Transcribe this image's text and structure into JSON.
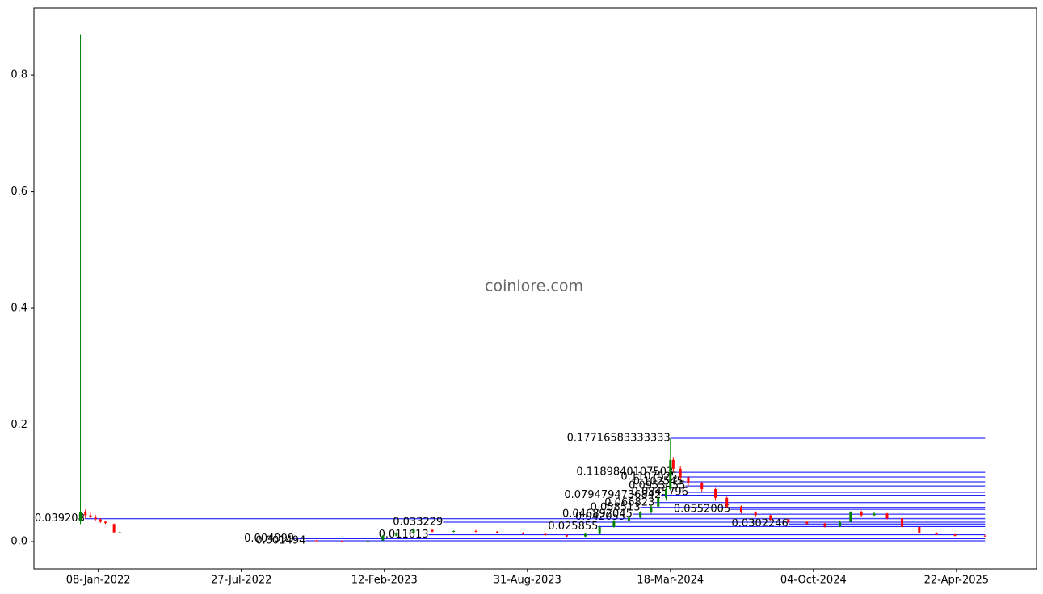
{
  "chart_data": {
    "type": "candlestick",
    "watermark": "coinlore.com",
    "x": [
      "2021-12-14",
      "2021-12-21",
      "2021-12-28",
      "2022-01-04",
      "2022-01-11",
      "2022-01-18",
      "2022-01-30",
      "2022-02-07",
      "2022-11-09",
      "2022-12-15",
      "2023-01-20",
      "2023-02-10",
      "2023-03-01",
      "2023-03-25",
      "2023-04-20",
      "2023-05-20",
      "2023-06-20",
      "2023-07-20",
      "2023-08-25",
      "2023-09-25",
      "2023-10-25",
      "2023-11-20",
      "2023-12-10",
      "2023-12-30",
      "2024-01-20",
      "2024-02-05",
      "2024-02-20",
      "2024-03-01",
      "2024-03-12",
      "2024-03-18",
      "2024-03-22",
      "2024-04-01",
      "2024-04-12",
      "2024-05-01",
      "2024-05-20",
      "2024-06-05",
      "2024-06-25",
      "2024-07-15",
      "2024-08-05",
      "2024-08-30",
      "2024-09-25",
      "2024-10-20",
      "2024-11-10",
      "2024-11-25",
      "2024-12-10",
      "2024-12-28",
      "2025-01-15",
      "2025-02-05",
      "2025-03-01",
      "2025-03-25",
      "2025-04-20",
      "2025-06-01"
    ],
    "open": [
      0.035,
      0.05,
      0.045,
      0.042,
      0.038,
      0.034,
      0.03,
      0.016,
      0.002,
      0.0015,
      0.0012,
      0.002,
      0.01,
      0.015,
      0.02,
      0.017,
      0.018,
      0.017,
      0.015,
      0.013,
      0.011,
      0.009,
      0.013,
      0.025,
      0.035,
      0.041,
      0.05,
      0.06,
      0.075,
      0.09,
      0.14,
      0.125,
      0.11,
      0.1,
      0.09,
      0.075,
      0.06,
      0.05,
      0.045,
      0.038,
      0.034,
      0.031,
      0.026,
      0.034,
      0.05,
      0.045,
      0.048,
      0.04,
      0.025,
      0.015,
      0.012,
      0.01
    ],
    "high": [
      0.87,
      0.055,
      0.05,
      0.046,
      0.04,
      0.036,
      0.031,
      0.017,
      0.003,
      0.002,
      0.002,
      0.011,
      0.016,
      0.023,
      0.021,
      0.019,
      0.02,
      0.018,
      0.016,
      0.014,
      0.012,
      0.014,
      0.027,
      0.037,
      0.043,
      0.052,
      0.062,
      0.077,
      0.093,
      0.17716583333333,
      0.145,
      0.13,
      0.112,
      0.102,
      0.092,
      0.077,
      0.062,
      0.052,
      0.046,
      0.04,
      0.035,
      0.032,
      0.036,
      0.052,
      0.053,
      0.05,
      0.049,
      0.041,
      0.026,
      0.016,
      0.013,
      0.011
    ],
    "low": [
      0.03,
      0.04,
      0.04,
      0.035,
      0.032,
      0.03,
      0.015,
      0.015,
      0.001,
      0.001,
      0.001,
      0.002,
      0.009,
      0.014,
      0.016,
      0.016,
      0.016,
      0.014,
      0.012,
      0.01,
      0.008,
      0.008,
      0.012,
      0.024,
      0.033,
      0.04,
      0.048,
      0.058,
      0.07,
      0.088,
      0.12,
      0.105,
      0.095,
      0.085,
      0.07,
      0.058,
      0.048,
      0.042,
      0.036,
      0.032,
      0.029,
      0.024,
      0.025,
      0.033,
      0.043,
      0.044,
      0.038,
      0.023,
      0.014,
      0.011,
      0.009,
      0.009
    ],
    "close": [
      0.05,
      0.045,
      0.042,
      0.038,
      0.034,
      0.032,
      0.016,
      0.016,
      0.0015,
      0.0012,
      0.0015,
      0.01,
      0.015,
      0.02,
      0.017,
      0.018,
      0.017,
      0.015,
      0.013,
      0.011,
      0.009,
      0.013,
      0.025,
      0.035,
      0.041,
      0.05,
      0.06,
      0.075,
      0.09,
      0.14,
      0.125,
      0.11,
      0.1,
      0.09,
      0.075,
      0.06,
      0.05,
      0.045,
      0.038,
      0.034,
      0.031,
      0.026,
      0.034,
      0.05,
      0.045,
      0.048,
      0.04,
      0.025,
      0.015,
      0.012,
      0.01,
      0.0095
    ],
    "up_color": "green",
    "down_color": "red",
    "levels": [
      {
        "value": 0.17716583333333,
        "start": "2024-03-18"
      },
      {
        "value": 0.1189840107503,
        "start": "2024-03-22"
      },
      {
        "value": 0.1107525,
        "start": "2024-03-28"
      },
      {
        "value": 0.102545,
        "start": "2024-04-05"
      },
      {
        "value": 0.0953455,
        "start": "2024-04-08"
      },
      {
        "value": 0.0845796,
        "start": "2024-04-12"
      },
      {
        "value": 0.0794794736842,
        "start": "2024-03-05"
      },
      {
        "value": 0.066823,
        "start": "2024-02-25"
      },
      {
        "value": 0.058513,
        "start": "2024-02-05"
      },
      {
        "value": 0.0552005,
        "start": "2024-06-10"
      },
      {
        "value": 0.046892045,
        "start": "2024-01-25"
      },
      {
        "value": 0.042055,
        "start": "2024-01-15"
      },
      {
        "value": 0.039208,
        "start": "2021-12-20"
      },
      {
        "value": 0.033229,
        "start": "2023-05-05"
      },
      {
        "value": 0.0302246,
        "start": "2024-08-30"
      },
      {
        "value": 0.025855,
        "start": "2023-12-08"
      },
      {
        "value": 0.011613,
        "start": "2023-04-15"
      },
      {
        "value": 0.004999,
        "start": "2022-10-09"
      },
      {
        "value": 0.001494,
        "start": "2022-10-25"
      }
    ],
    "level_color": "blue",
    "xlim": [
      "2021-10-10",
      "2025-08-12"
    ],
    "xticks": [
      {
        "value": "2022-01-08",
        "label": "08-Jan-2022"
      },
      {
        "value": "2022-07-27",
        "label": "27-Jul-2022"
      },
      {
        "value": "2023-02-12",
        "label": "12-Feb-2023"
      },
      {
        "value": "2023-08-31",
        "label": "31-Aug-2023"
      },
      {
        "value": "2024-03-18",
        "label": "18-Mar-2024"
      },
      {
        "value": "2024-10-04",
        "label": "04-Oct-2024"
      },
      {
        "value": "2025-04-22",
        "label": "22-Apr-2025"
      }
    ],
    "ylim": [
      -0.047,
      0.915
    ],
    "yticks": [
      {
        "value": 0,
        "label": "0.0"
      },
      0.2,
      0.4,
      0.6,
      0.8
    ]
  }
}
